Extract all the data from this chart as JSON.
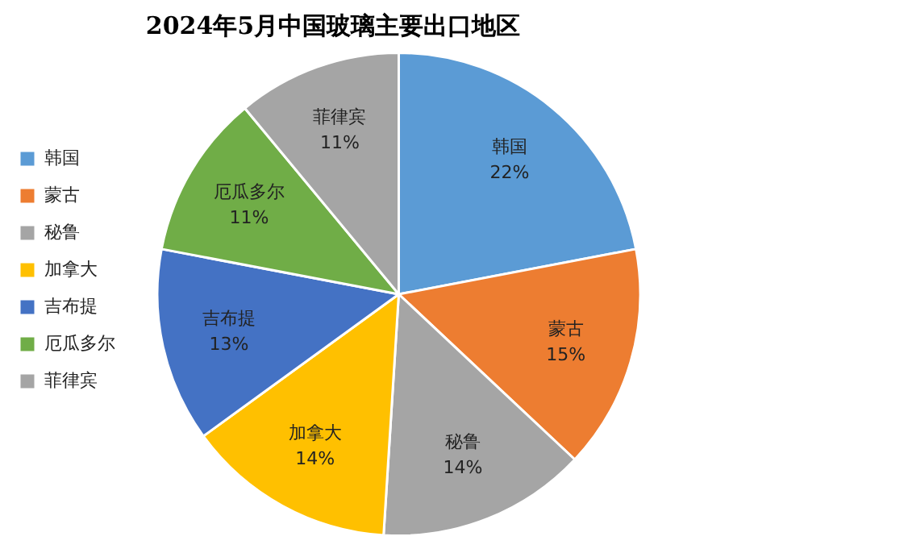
{
  "chart_data": {
    "type": "pie",
    "title": "2024年5月中国玻璃主要出口地区",
    "categories": [
      "韩国",
      "蒙古",
      "秘鲁",
      "加拿大",
      "吉布提",
      "厄瓜多尔",
      "菲律宾"
    ],
    "values": [
      22,
      15,
      14,
      14,
      13,
      11,
      11
    ],
    "colors": [
      "#5b9bd5",
      "#ed7d31",
      "#a5a5a5",
      "#ffc000",
      "#4472c4",
      "#70ad47",
      "#a5a5a5"
    ],
    "value_labels": [
      "22%",
      "15%",
      "14%",
      "14%",
      "13%",
      "11%",
      "11%"
    ],
    "legend": "left"
  }
}
